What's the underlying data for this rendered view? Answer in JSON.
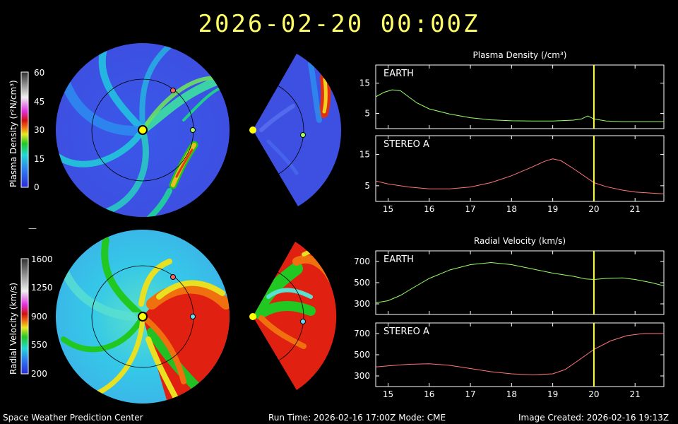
{
  "header": {
    "title": "2026-02-20  00:00Z"
  },
  "footer": {
    "left": "Space Weather Prediction Center",
    "center": "Run Time: 2026-02-16 17:00Z  Mode: CME",
    "right": "Image Created: 2026-02-16 19:13Z"
  },
  "colorbars": {
    "density": {
      "label": "Plasma Density (r²N/cm³)",
      "ticks": [
        "60",
        "45",
        "30",
        "15",
        "0"
      ]
    },
    "velocity": {
      "label": "Radial Velocity (km/s)",
      "ticks": [
        "1600",
        "1250",
        "900",
        "550",
        "200"
      ]
    }
  },
  "spacer_mark": "—",
  "colors": {
    "title": "#ffff66",
    "earth_line": "#99ff66",
    "stereo_line": "#ff7777",
    "marker": "#ffff44",
    "sun": "#ffff00"
  },
  "chart_data": [
    {
      "type": "line",
      "title": "Plasma Density (/cm³)",
      "panels": [
        {
          "label": "EARTH",
          "x": [
            14.7,
            14.9,
            15.1,
            15.3,
            15.5,
            15.7,
            16.0,
            16.5,
            17.0,
            17.5,
            18.0,
            18.5,
            19.0,
            19.5,
            19.7,
            19.85,
            20.0,
            20.3,
            20.7,
            21.0,
            21.7
          ],
          "y": [
            10.5,
            12.0,
            12.8,
            12.5,
            10.5,
            8.5,
            6.5,
            4.8,
            3.6,
            2.9,
            2.6,
            2.5,
            2.5,
            2.8,
            3.2,
            4.2,
            3.2,
            2.5,
            2.3,
            2.3,
            2.3
          ],
          "ylim": [
            0,
            21
          ],
          "yticks": [
            5,
            15
          ]
        },
        {
          "label": "STEREO A",
          "x": [
            14.7,
            15.0,
            15.5,
            16.0,
            16.5,
            17.0,
            17.5,
            18.0,
            18.5,
            18.8,
            19.0,
            19.2,
            19.5,
            19.8,
            20.0,
            20.3,
            20.7,
            21.0,
            21.7
          ],
          "y": [
            6.5,
            5.6,
            4.6,
            4.0,
            4.0,
            4.6,
            6.0,
            8.2,
            11.0,
            12.8,
            13.6,
            13.0,
            10.5,
            7.8,
            6.0,
            4.7,
            3.6,
            3.0,
            2.4
          ],
          "ylim": [
            0,
            21
          ],
          "yticks": [
            5,
            15
          ]
        }
      ],
      "xlim": [
        14.7,
        21.7
      ],
      "xticks": [
        15,
        16,
        17,
        18,
        19,
        20,
        21
      ],
      "marker_x": 20
    },
    {
      "type": "line",
      "title": "Radial Velocity (km/s)",
      "panels": [
        {
          "label": "EARTH",
          "x": [
            14.7,
            15.0,
            15.3,
            15.6,
            16.0,
            16.5,
            17.0,
            17.5,
            18.0,
            18.5,
            19.0,
            19.5,
            19.8,
            20.0,
            20.3,
            20.7,
            21.0,
            21.4,
            21.7
          ],
          "y": [
            310,
            330,
            380,
            450,
            540,
            620,
            670,
            690,
            670,
            630,
            590,
            560,
            535,
            530,
            540,
            545,
            530,
            500,
            470
          ],
          "ylim": [
            200,
            800
          ],
          "yticks": [
            300,
            500,
            700
          ]
        },
        {
          "label": "STEREO A",
          "x": [
            14.7,
            15.0,
            15.5,
            16.0,
            16.5,
            17.0,
            17.5,
            18.0,
            18.5,
            19.0,
            19.3,
            19.6,
            20.0,
            20.4,
            20.8,
            21.2,
            21.7
          ],
          "y": [
            385,
            395,
            410,
            415,
            400,
            370,
            340,
            320,
            310,
            320,
            360,
            440,
            550,
            630,
            680,
            700,
            700
          ],
          "ylim": [
            200,
            800
          ],
          "yticks": [
            300,
            500,
            700
          ]
        }
      ],
      "xlim": [
        14.7,
        21.7
      ],
      "xticks": [
        15,
        16,
        17,
        18,
        19,
        20,
        21
      ],
      "marker_x": 20
    }
  ]
}
